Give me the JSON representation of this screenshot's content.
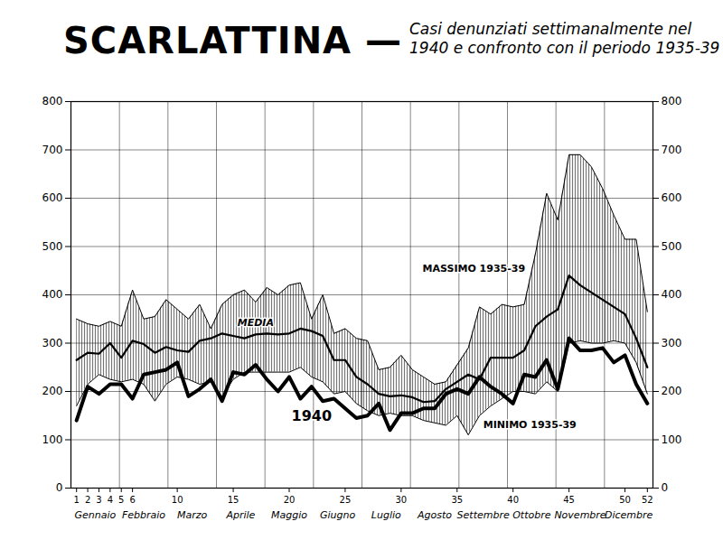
{
  "chart_data": {
    "type": "line",
    "title": "SCARLATTINA —",
    "subtitle": "Casi denunziati settimanalmente nel 1940 e confronto con il periodo 1935-39",
    "x": [
      1,
      2,
      3,
      4,
      5,
      6,
      7,
      8,
      9,
      10,
      11,
      12,
      13,
      14,
      15,
      16,
      17,
      18,
      19,
      20,
      21,
      22,
      23,
      24,
      25,
      26,
      27,
      28,
      29,
      30,
      31,
      32,
      33,
      34,
      35,
      36,
      37,
      38,
      39,
      40,
      41,
      42,
      43,
      44,
      45,
      46,
      47,
      48,
      49,
      50,
      51,
      52
    ],
    "xlim": [
      0.5,
      52.5
    ],
    "xticks": [
      1,
      2,
      3,
      4,
      5,
      6,
      10,
      15,
      20,
      25,
      30,
      35,
      40,
      45,
      50,
      52
    ],
    "ylim": [
      0,
      800
    ],
    "yticks": [
      0,
      100,
      200,
      300,
      400,
      500,
      600,
      700,
      800
    ],
    "grid": true,
    "month_labels": [
      "Gennaio",
      "Febbraio",
      "Marzo",
      "Aprile",
      "Maggio",
      "Giugno",
      "Luglio",
      "Agosto",
      "Settembre",
      "Ottobre",
      "Novembre",
      "Dicembre"
    ],
    "series": [
      {
        "name": "MASSIMO 1935-39",
        "type": "band",
        "color": "#000000",
        "line_style": "thin",
        "label_x": 36.5,
        "label_y": 455,
        "values": [
          350,
          340,
          335,
          345,
          335,
          410,
          350,
          355,
          390,
          370,
          350,
          380,
          330,
          380,
          400,
          410,
          385,
          415,
          400,
          420,
          425,
          350,
          400,
          320,
          330,
          310,
          305,
          245,
          250,
          275,
          245,
          230,
          215,
          220,
          255,
          290,
          375,
          360,
          380,
          375,
          380,
          485,
          610,
          555,
          690,
          690,
          665,
          620,
          565,
          515,
          515,
          365
        ]
      },
      {
        "name": "MINIMO 1935-39",
        "type": "band",
        "color": "#000000",
        "line_style": "thin",
        "label_x": 41.5,
        "label_y": 130,
        "values": [
          170,
          215,
          235,
          225,
          220,
          225,
          215,
          180,
          215,
          230,
          225,
          215,
          220,
          190,
          225,
          240,
          240,
          240,
          240,
          240,
          250,
          230,
          220,
          195,
          200,
          175,
          160,
          150,
          155,
          150,
          150,
          140,
          135,
          130,
          150,
          110,
          150,
          170,
          185,
          200,
          200,
          195,
          220,
          200,
          300,
          305,
          300,
          300,
          305,
          300,
          260,
          195
        ]
      },
      {
        "name": "MEDIA",
        "type": "line",
        "color": "#000000",
        "line_style": "medium",
        "label_x": 17,
        "label_y": 342,
        "values": [
          265,
          280,
          278,
          300,
          270,
          305,
          298,
          280,
          292,
          285,
          282,
          305,
          310,
          320,
          315,
          310,
          318,
          320,
          318,
          320,
          330,
          325,
          315,
          265,
          265,
          230,
          215,
          195,
          190,
          192,
          188,
          178,
          180,
          205,
          220,
          235,
          225,
          270,
          270,
          270,
          285,
          335,
          355,
          370,
          440,
          420,
          405,
          390,
          375,
          360,
          310,
          250
        ]
      },
      {
        "name": "1940",
        "type": "line",
        "color": "#000000",
        "line_style": "thick",
        "label_x": 22,
        "label_y": 148,
        "values": [
          140,
          210,
          195,
          215,
          215,
          185,
          235,
          240,
          245,
          260,
          190,
          205,
          225,
          180,
          240,
          235,
          255,
          225,
          200,
          230,
          185,
          210,
          180,
          185,
          165,
          145,
          150,
          175,
          120,
          155,
          155,
          165,
          165,
          195,
          205,
          195,
          230,
          210,
          195,
          175,
          235,
          230,
          265,
          205,
          310,
          285,
          285,
          290,
          260,
          275,
          215,
          175
        ]
      }
    ]
  }
}
